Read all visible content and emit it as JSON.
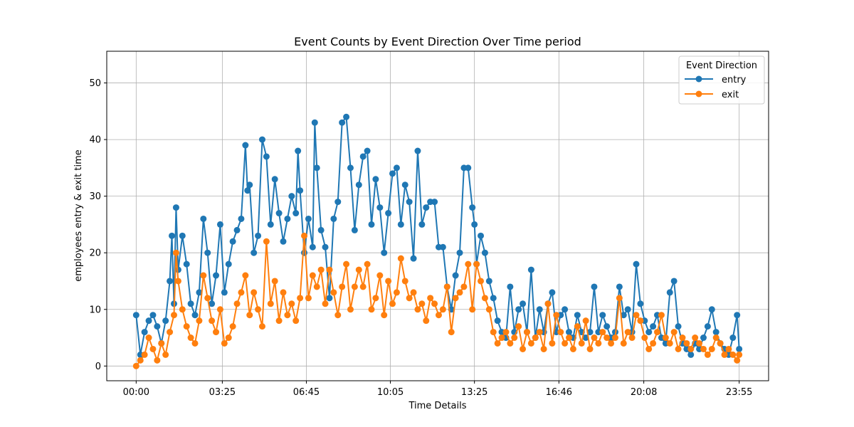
{
  "chart_data": {
    "type": "line",
    "title": "Event Counts by Event Direction Over Time period",
    "xlabel": "Time Details",
    "ylabel": "employees entry & exit time",
    "x_tick_labels": [
      "00:00",
      "03:25",
      "06:45",
      "10:05",
      "13:25",
      "16:46",
      "20:08",
      "23:55"
    ],
    "x_tick_minutes": [
      0,
      205,
      405,
      605,
      805,
      1006,
      1208,
      1435
    ],
    "xlim_minutes": [
      -70,
      1505
    ],
    "ylim": [
      -2.6,
      55.6
    ],
    "y_ticks": [
      0,
      10,
      20,
      30,
      40,
      50
    ],
    "grid": true,
    "legend_title": "Event Direction",
    "legend_position": "top-right",
    "series": [
      {
        "name": "entry",
        "color": "#1f77b4",
        "x_minutes": [
          0,
          10,
          20,
          30,
          40,
          50,
          60,
          70,
          80,
          85,
          90,
          95,
          100,
          110,
          120,
          130,
          140,
          150,
          160,
          170,
          180,
          190,
          200,
          210,
          220,
          230,
          240,
          250,
          260,
          265,
          270,
          280,
          290,
          300,
          310,
          320,
          330,
          340,
          350,
          360,
          370,
          380,
          385,
          390,
          400,
          410,
          420,
          425,
          430,
          440,
          450,
          460,
          470,
          480,
          490,
          500,
          510,
          520,
          530,
          540,
          550,
          560,
          570,
          580,
          590,
          600,
          610,
          620,
          630,
          640,
          650,
          660,
          670,
          680,
          690,
          700,
          710,
          720,
          730,
          740,
          750,
          760,
          770,
          780,
          790,
          800,
          805,
          810,
          820,
          830,
          840,
          850,
          860,
          870,
          880,
          890,
          900,
          910,
          920,
          930,
          940,
          950,
          960,
          970,
          980,
          990,
          1000,
          1010,
          1020,
          1030,
          1040,
          1050,
          1060,
          1070,
          1080,
          1090,
          1100,
          1110,
          1120,
          1130,
          1140,
          1150,
          1160,
          1170,
          1180,
          1190,
          1200,
          1210,
          1220,
          1230,
          1240,
          1250,
          1260,
          1270,
          1280,
          1290,
          1300,
          1310,
          1320,
          1330,
          1340,
          1350,
          1360,
          1370,
          1380,
          1390,
          1400,
          1410,
          1420,
          1430,
          1435
        ],
        "values": [
          9,
          2,
          6,
          8,
          9,
          7,
          4,
          8,
          15,
          23,
          11,
          28,
          17,
          23,
          18,
          11,
          9,
          13,
          26,
          20,
          11,
          16,
          25,
          13,
          18,
          22,
          24,
          26,
          39,
          31,
          32,
          20,
          23,
          40,
          37,
          25,
          33,
          27,
          22,
          26,
          30,
          27,
          38,
          31,
          20,
          26,
          21,
          43,
          35,
          24,
          21,
          12,
          26,
          29,
          43,
          44,
          35,
          24,
          32,
          37,
          38,
          25,
          33,
          28,
          20,
          27,
          34,
          35,
          25,
          32,
          29,
          19,
          38,
          25,
          28,
          29,
          29,
          21,
          21,
          14,
          10,
          16,
          20,
          35,
          35,
          28,
          25,
          18,
          23,
          20,
          15,
          12,
          8,
          6,
          5,
          14,
          6,
          10,
          11,
          6,
          17,
          5,
          10,
          6,
          11,
          13,
          6,
          9,
          10,
          6,
          5,
          9,
          6,
          5,
          6,
          14,
          6,
          9,
          7,
          5,
          6,
          14,
          9,
          10,
          6,
          18,
          11,
          8,
          6,
          7,
          9,
          5,
          4,
          13,
          15,
          7,
          4,
          3,
          2,
          4,
          3,
          5,
          7,
          10,
          6,
          4,
          3,
          2,
          5,
          9,
          3
        ]
      },
      {
        "name": "exit",
        "color": "#ff7f0e",
        "x_minutes": [
          0,
          10,
          20,
          30,
          40,
          50,
          60,
          70,
          80,
          90,
          95,
          100,
          110,
          120,
          130,
          140,
          150,
          160,
          170,
          180,
          190,
          200,
          210,
          220,
          230,
          240,
          250,
          260,
          270,
          280,
          290,
          300,
          310,
          320,
          330,
          340,
          350,
          360,
          370,
          380,
          390,
          400,
          410,
          420,
          430,
          440,
          450,
          460,
          470,
          480,
          490,
          500,
          510,
          520,
          530,
          540,
          550,
          560,
          570,
          580,
          590,
          600,
          610,
          620,
          630,
          640,
          650,
          660,
          670,
          680,
          690,
          700,
          710,
          720,
          730,
          740,
          750,
          760,
          770,
          780,
          790,
          800,
          810,
          820,
          830,
          840,
          850,
          860,
          870,
          880,
          890,
          900,
          910,
          920,
          930,
          940,
          950,
          960,
          970,
          980,
          990,
          1000,
          1010,
          1020,
          1030,
          1040,
          1050,
          1060,
          1070,
          1080,
          1090,
          1100,
          1110,
          1120,
          1130,
          1140,
          1150,
          1160,
          1170,
          1180,
          1190,
          1200,
          1210,
          1220,
          1230,
          1240,
          1250,
          1260,
          1270,
          1280,
          1290,
          1300,
          1310,
          1320,
          1330,
          1340,
          1350,
          1360,
          1370,
          1380,
          1390,
          1400,
          1410,
          1420,
          1430,
          1435
        ],
        "values": [
          0,
          1,
          2,
          5,
          3,
          1,
          4,
          2,
          6,
          9,
          20,
          15,
          10,
          7,
          5,
          4,
          8,
          16,
          12,
          8,
          6,
          10,
          4,
          5,
          7,
          11,
          13,
          16,
          9,
          13,
          10,
          7,
          22,
          11,
          15,
          8,
          13,
          9,
          11,
          8,
          12,
          23,
          12,
          16,
          14,
          17,
          11,
          17,
          13,
          9,
          14,
          18,
          10,
          14,
          17,
          14,
          18,
          10,
          12,
          16,
          9,
          15,
          11,
          13,
          19,
          15,
          12,
          13,
          10,
          11,
          8,
          12,
          11,
          9,
          10,
          14,
          6,
          12,
          13,
          14,
          18,
          10,
          18,
          15,
          12,
          10,
          6,
          4,
          5,
          6,
          4,
          5,
          7,
          3,
          6,
          4,
          5,
          6,
          3,
          11,
          4,
          9,
          6,
          4,
          5,
          3,
          7,
          4,
          8,
          3,
          5,
          4,
          6,
          5,
          4,
          5,
          12,
          4,
          6,
          5,
          9,
          8,
          5,
          3,
          4,
          6,
          9,
          5,
          4,
          6,
          3,
          5,
          4,
          3,
          5,
          4,
          3,
          2,
          3,
          5,
          4,
          2,
          3,
          2,
          1,
          2
        ]
      }
    ]
  }
}
